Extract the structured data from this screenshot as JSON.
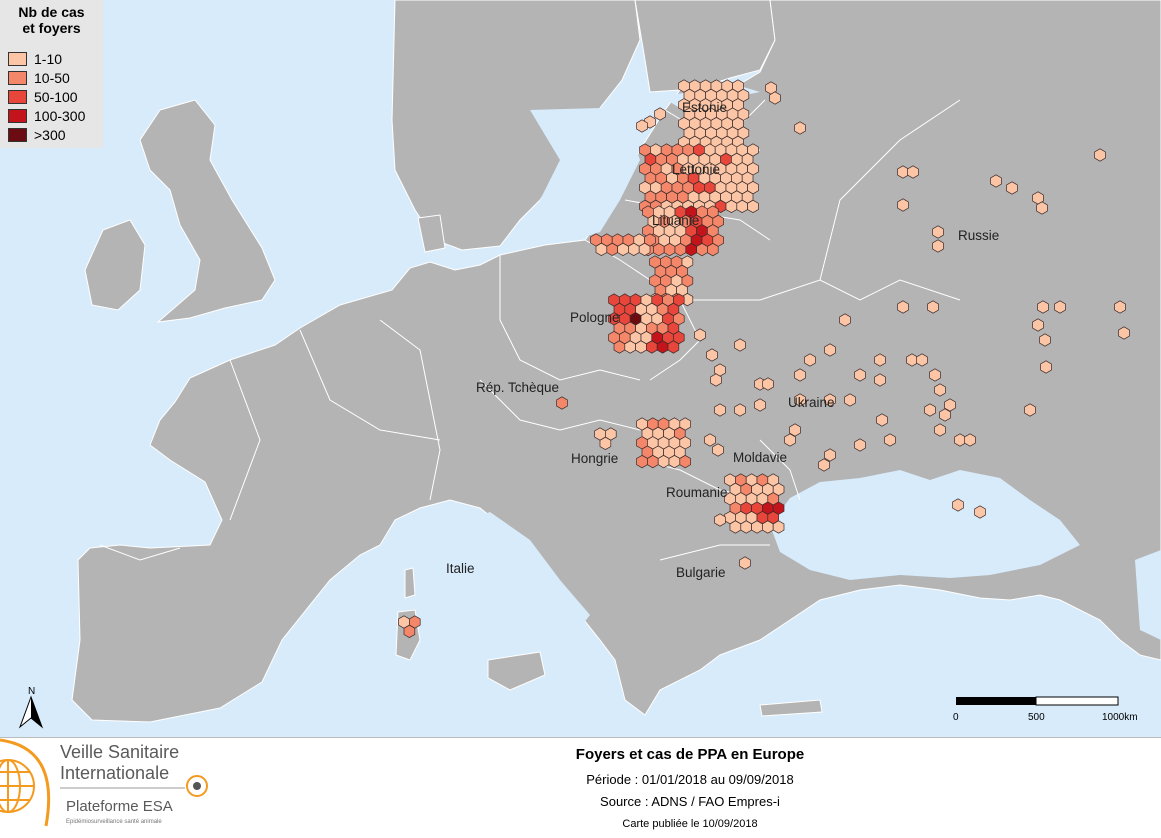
{
  "legend": {
    "title_line1": "Nb de cas",
    "title_line2": "et foyers",
    "classes": [
      {
        "label": "1-10",
        "color": "#fcc6a6"
      },
      {
        "label": "10-50",
        "color": "#f4876a"
      },
      {
        "label": "50-100",
        "color": "#e8463a"
      },
      {
        "label": "100-300",
        "color": "#c4141b"
      },
      {
        "label": ">300",
        "color": "#6b0b12"
      }
    ]
  },
  "countries": {
    "estonia": "Estonie",
    "latvia": "Lettonie",
    "lithuania": "Lituanie",
    "russia": "Russie",
    "poland": "Pologne",
    "czech": "Rép. Tchèque",
    "ukraine": "Ukraine",
    "hungary": "Hongrie",
    "moldova": "Moldavie",
    "romania": "Roumanie",
    "italy": "Italie",
    "bulgaria": "Bulgarie"
  },
  "scale": {
    "t0": "0",
    "t1": "500",
    "t2": "1000km"
  },
  "north": "N",
  "footer": {
    "title": "Foyers et cas de PPA en Europe",
    "period": "Période : 01/01/2018 au 09/09/2018",
    "source": "Source : ADNS / FAO Empres-i",
    "published": "Carte publiée le 10/09/2018"
  },
  "logo": {
    "line1": "Veille Sanitaire",
    "line2": "Internationale",
    "line3": "Plateforme ESA",
    "line4": "Epidémiosurveillance santé animale"
  },
  "colors": {
    "sea": "#d7ebfb",
    "land": "#b4b4b4",
    "border": "#ffffff",
    "accent": "#f39a1f"
  }
}
